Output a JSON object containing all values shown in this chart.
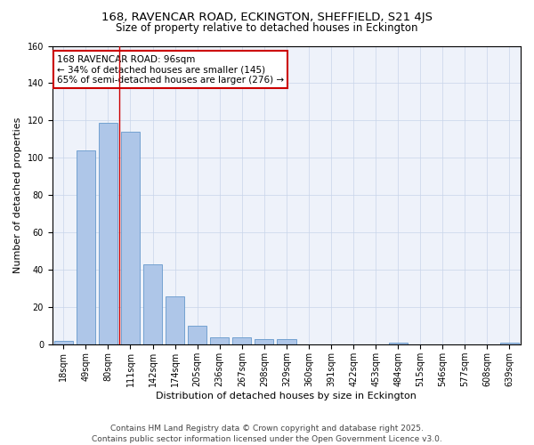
{
  "title_line1": "168, RAVENCAR ROAD, ECKINGTON, SHEFFIELD, S21 4JS",
  "title_line2": "Size of property relative to detached houses in Eckington",
  "xlabel": "Distribution of detached houses by size in Eckington",
  "ylabel": "Number of detached properties",
  "categories": [
    "18sqm",
    "49sqm",
    "80sqm",
    "111sqm",
    "142sqm",
    "174sqm",
    "205sqm",
    "236sqm",
    "267sqm",
    "298sqm",
    "329sqm",
    "360sqm",
    "391sqm",
    "422sqm",
    "453sqm",
    "484sqm",
    "515sqm",
    "546sqm",
    "577sqm",
    "608sqm",
    "639sqm"
  ],
  "values": [
    2,
    104,
    119,
    114,
    43,
    26,
    10,
    4,
    4,
    3,
    3,
    0,
    0,
    0,
    0,
    1,
    0,
    0,
    0,
    0,
    1
  ],
  "bar_color": "#aec6e8",
  "bar_edge_color": "#6699cc",
  "vline_color": "#cc0000",
  "vline_x_index": 2.5,
  "annotation_line1": "168 RAVENCAR ROAD: 96sqm",
  "annotation_line2": "← 34% of detached houses are smaller (145)",
  "annotation_line3": "65% of semi-detached houses are larger (276) →",
  "annotation_box_color": "#cc0000",
  "ylim": [
    0,
    160
  ],
  "yticks": [
    0,
    20,
    40,
    60,
    80,
    100,
    120,
    140,
    160
  ],
  "background_color": "#eef2fa",
  "grid_color": "#c8d4ea",
  "footer_line1": "Contains HM Land Registry data © Crown copyright and database right 2025.",
  "footer_line2": "Contains public sector information licensed under the Open Government Licence v3.0.",
  "title_fontsize": 9.5,
  "subtitle_fontsize": 8.5,
  "axis_label_fontsize": 8,
  "tick_fontsize": 7,
  "annotation_fontsize": 7.5,
  "footer_fontsize": 6.5
}
